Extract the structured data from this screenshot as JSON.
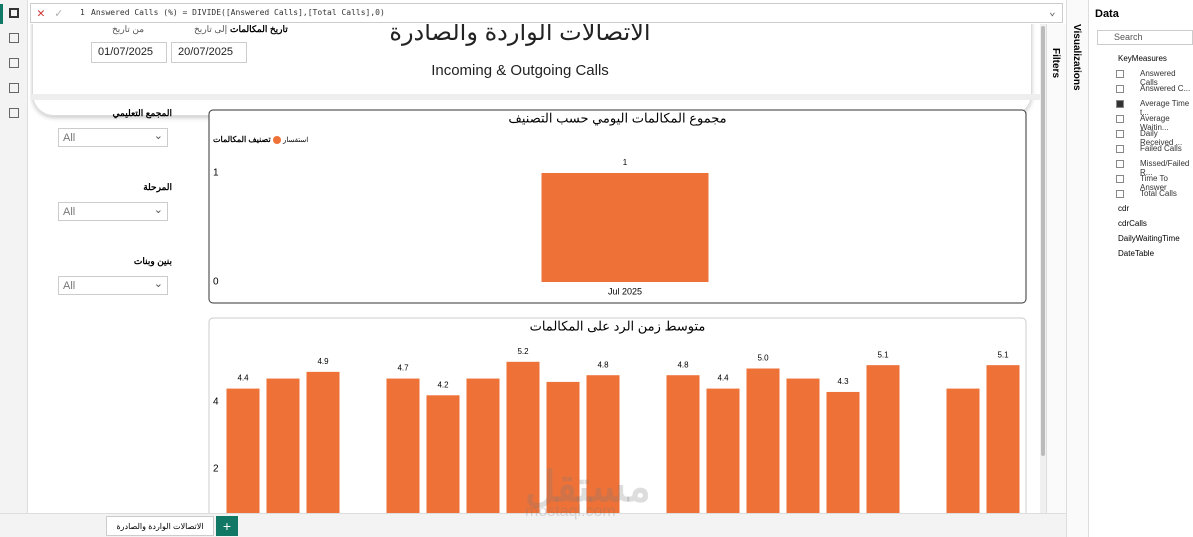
{
  "formula_bar": {
    "line": "1",
    "text": "Answered Calls (%) = DIVIDE([Answered Calls],[Total Calls],0)"
  },
  "header": {
    "title_ar": "الاتصالات الواردة والصادرة",
    "title_en": "Incoming & Outgoing Calls",
    "date_slicer": {
      "title": "تاريخ المكالمات",
      "from_label": "من تاريخ",
      "to_label": "إلى تاريخ",
      "from": "01/07/2025",
      "to": "20/07/2025"
    }
  },
  "slicers": [
    {
      "title": "المجمع التعليمي",
      "value": "All"
    },
    {
      "title": "المرحلة",
      "value": "All"
    },
    {
      "title": "بنين وبنات",
      "value": "All"
    }
  ],
  "charts": [
    {
      "type": "bar",
      "title": "مجموع المكالمات اليومي حسب التصنيف",
      "legend_title": "تصنيف المكالمات",
      "series": [
        {
          "name": "استفسار",
          "color": "#ee7238",
          "values": [
            1
          ]
        }
      ],
      "categories": [
        "Jul 2025"
      ],
      "ylim": [
        0,
        1
      ],
      "yticks": [
        0,
        1
      ]
    },
    {
      "type": "bar",
      "title": "متوسط زمن الرد على المكالمات",
      "color": "#ee7238",
      "values": [
        4.4,
        4.7,
        4.9,
        null,
        4.7,
        4.2,
        4.7,
        5.2,
        4.6,
        4.8,
        null,
        4.8,
        4.4,
        5.0,
        4.7,
        4.3,
        5.1,
        null,
        4.4,
        5.1
      ],
      "value_labels": [
        "4.4",
        null,
        "4.9",
        null,
        "4.7",
        "4.2",
        null,
        "5.2",
        null,
        "4.8",
        null,
        "4.8",
        "4.4",
        "5.0",
        null,
        "4.3",
        "5.1",
        null,
        null,
        "5.1"
      ],
      "ylim": [
        0,
        5.8
      ],
      "yticks": [
        2,
        4
      ]
    }
  ],
  "panes": {
    "filters": "Filters",
    "visualizations": "Visualizations",
    "data": "Data",
    "search": "Search"
  },
  "fields": {
    "group": "KeyMeasures",
    "measures": [
      {
        "name": "Answered Calls",
        "checked": false
      },
      {
        "name": "Answered C...",
        "checked": false
      },
      {
        "name": "Average Time t...",
        "checked": true
      },
      {
        "name": "Average Waitin...",
        "checked": false
      },
      {
        "name": "Daily Received ...",
        "checked": false
      },
      {
        "name": "Failed Calls",
        "checked": false
      },
      {
        "name": "Missed/Failed R...",
        "checked": false
      },
      {
        "name": "Time To Answer",
        "checked": false
      },
      {
        "name": "Total Calls",
        "checked": false
      }
    ],
    "tables": [
      "cdr",
      "cdrCalls",
      "DailyWaitingTime",
      "DateTable"
    ]
  },
  "page_tab": "الاتصالات الواردة والصادرة",
  "watermark": {
    "ar": "مستقل",
    "en": "mostaql.com"
  }
}
